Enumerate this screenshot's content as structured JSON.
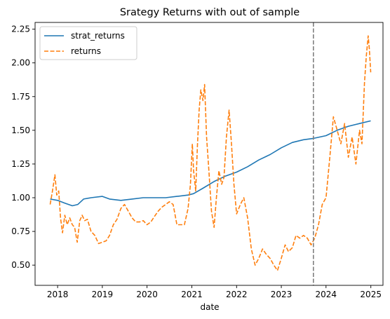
{
  "chart_data": {
    "type": "line",
    "title": "Srategy Returns with out of sample",
    "xlabel": "date",
    "ylabel": "",
    "x_axis": "date",
    "xlim": [
      "2017-07-01",
      "2025-04-10"
    ],
    "ylim": [
      0.35,
      2.3
    ],
    "xticks": [
      "2018",
      "2019",
      "2020",
      "2021",
      "2022",
      "2023",
      "2024",
      "2025"
    ],
    "yticks": [
      "0.50",
      "0.75",
      "1.00",
      "1.25",
      "1.50",
      "1.75",
      "2.00",
      "2.25"
    ],
    "grid": false,
    "legend_position": "upper left",
    "out_of_sample_start": "2023-09-20",
    "vline_color": "#808080",
    "series": [
      {
        "name": "strat_returns",
        "color": "#1f77b4",
        "style": "solid",
        "points": [
          [
            "2017-11-01",
            0.99
          ],
          [
            "2018-01-01",
            0.98
          ],
          [
            "2018-03-01",
            0.96
          ],
          [
            "2018-05-01",
            0.94
          ],
          [
            "2018-06-15",
            0.95
          ],
          [
            "2018-08-01",
            0.99
          ],
          [
            "2018-10-01",
            1.0
          ],
          [
            "2019-01-01",
            1.01
          ],
          [
            "2019-03-01",
            0.99
          ],
          [
            "2019-06-01",
            0.98
          ],
          [
            "2019-09-01",
            0.99
          ],
          [
            "2019-12-01",
            1.0
          ],
          [
            "2020-03-01",
            1.0
          ],
          [
            "2020-06-01",
            1.0
          ],
          [
            "2020-09-01",
            1.01
          ],
          [
            "2020-12-01",
            1.02
          ],
          [
            "2021-01-15",
            1.03
          ],
          [
            "2021-04-01",
            1.07
          ],
          [
            "2021-07-01",
            1.12
          ],
          [
            "2021-10-01",
            1.16
          ],
          [
            "2022-01-01",
            1.19
          ],
          [
            "2022-04-01",
            1.23
          ],
          [
            "2022-07-01",
            1.28
          ],
          [
            "2022-10-01",
            1.32
          ],
          [
            "2023-01-01",
            1.37
          ],
          [
            "2023-04-01",
            1.41
          ],
          [
            "2023-07-01",
            1.43
          ],
          [
            "2023-09-20",
            1.44
          ],
          [
            "2024-01-01",
            1.46
          ],
          [
            "2024-04-01",
            1.5
          ],
          [
            "2024-07-01",
            1.53
          ],
          [
            "2024-10-01",
            1.55
          ],
          [
            "2024-12-31",
            1.57
          ]
        ]
      },
      {
        "name": "returns",
        "color": "#ff7f0e",
        "style": "dashed",
        "points": [
          [
            "2017-11-01",
            0.95
          ],
          [
            "2017-11-20",
            1.05
          ],
          [
            "2017-12-10",
            1.17
          ],
          [
            "2017-12-25",
            1.02
          ],
          [
            "2018-01-10",
            1.05
          ],
          [
            "2018-01-25",
            0.85
          ],
          [
            "2018-02-10",
            0.74
          ],
          [
            "2018-03-01",
            0.87
          ],
          [
            "2018-03-20",
            0.8
          ],
          [
            "2018-04-10",
            0.85
          ],
          [
            "2018-05-01",
            0.8
          ],
          [
            "2018-05-20",
            0.78
          ],
          [
            "2018-06-10",
            0.67
          ],
          [
            "2018-07-01",
            0.83
          ],
          [
            "2018-07-20",
            0.87
          ],
          [
            "2018-08-10",
            0.83
          ],
          [
            "2018-09-01",
            0.84
          ],
          [
            "2018-10-01",
            0.75
          ],
          [
            "2018-11-01",
            0.72
          ],
          [
            "2018-12-01",
            0.66
          ],
          [
            "2019-01-01",
            0.67
          ],
          [
            "2019-02-01",
            0.68
          ],
          [
            "2019-03-01",
            0.72
          ],
          [
            "2019-04-01",
            0.8
          ],
          [
            "2019-05-01",
            0.84
          ],
          [
            "2019-06-01",
            0.92
          ],
          [
            "2019-07-01",
            0.95
          ],
          [
            "2019-08-01",
            0.9
          ],
          [
            "2019-09-01",
            0.85
          ],
          [
            "2019-10-01",
            0.82
          ],
          [
            "2019-11-01",
            0.82
          ],
          [
            "2019-12-01",
            0.83
          ],
          [
            "2020-01-01",
            0.8
          ],
          [
            "2020-02-01",
            0.82
          ],
          [
            "2020-03-01",
            0.86
          ],
          [
            "2020-04-01",
            0.9
          ],
          [
            "2020-05-01",
            0.93
          ],
          [
            "2020-06-01",
            0.95
          ],
          [
            "2020-07-01",
            0.97
          ],
          [
            "2020-08-01",
            0.95
          ],
          [
            "2020-09-01",
            0.8
          ],
          [
            "2020-10-01",
            0.8
          ],
          [
            "2020-11-01",
            0.8
          ],
          [
            "2020-12-01",
            0.92
          ],
          [
            "2020-12-20",
            1.1
          ],
          [
            "2021-01-05",
            1.4
          ],
          [
            "2021-01-15",
            1.2
          ],
          [
            "2021-02-01",
            1.05
          ],
          [
            "2021-02-15",
            1.38
          ],
          [
            "2021-03-01",
            1.65
          ],
          [
            "2021-03-15",
            1.8
          ],
          [
            "2021-04-01",
            1.72
          ],
          [
            "2021-04-15",
            1.84
          ],
          [
            "2021-05-01",
            1.45
          ],
          [
            "2021-05-20",
            1.2
          ],
          [
            "2021-06-10",
            0.9
          ],
          [
            "2021-07-01",
            0.78
          ],
          [
            "2021-07-20",
            1.0
          ],
          [
            "2021-08-10",
            1.2
          ],
          [
            "2021-09-01",
            1.1
          ],
          [
            "2021-09-20",
            1.15
          ],
          [
            "2021-10-10",
            1.45
          ],
          [
            "2021-11-01",
            1.65
          ],
          [
            "2021-11-20",
            1.4
          ],
          [
            "2021-12-10",
            1.1
          ],
          [
            "2022-01-01",
            0.88
          ],
          [
            "2022-02-01",
            0.95
          ],
          [
            "2022-03-01",
            1.0
          ],
          [
            "2022-04-01",
            0.85
          ],
          [
            "2022-05-01",
            0.62
          ],
          [
            "2022-06-01",
            0.5
          ],
          [
            "2022-07-01",
            0.55
          ],
          [
            "2022-08-01",
            0.62
          ],
          [
            "2022-09-01",
            0.58
          ],
          [
            "2022-10-01",
            0.55
          ],
          [
            "2022-11-01",
            0.5
          ],
          [
            "2022-12-01",
            0.46
          ],
          [
            "2023-01-01",
            0.55
          ],
          [
            "2023-02-01",
            0.65
          ],
          [
            "2023-03-01",
            0.6
          ],
          [
            "2023-04-01",
            0.63
          ],
          [
            "2023-05-01",
            0.72
          ],
          [
            "2023-06-01",
            0.7
          ],
          [
            "2023-07-01",
            0.72
          ],
          [
            "2023-08-01",
            0.7
          ],
          [
            "2023-09-01",
            0.65
          ],
          [
            "2023-10-01",
            0.7
          ],
          [
            "2023-11-01",
            0.8
          ],
          [
            "2023-12-01",
            0.95
          ],
          [
            "2024-01-01",
            1.0
          ],
          [
            "2024-02-01",
            1.3
          ],
          [
            "2024-03-01",
            1.6
          ],
          [
            "2024-04-01",
            1.5
          ],
          [
            "2024-05-01",
            1.4
          ],
          [
            "2024-06-01",
            1.55
          ],
          [
            "2024-07-01",
            1.3
          ],
          [
            "2024-08-01",
            1.45
          ],
          [
            "2024-09-01",
            1.25
          ],
          [
            "2024-10-01",
            1.5
          ],
          [
            "2024-10-20",
            1.4
          ],
          [
            "2024-11-10",
            1.85
          ],
          [
            "2024-11-25",
            2.05
          ],
          [
            "2024-12-10",
            2.2
          ],
          [
            "2024-12-20",
            2.1
          ],
          [
            "2024-12-31",
            1.93
          ]
        ]
      }
    ]
  }
}
